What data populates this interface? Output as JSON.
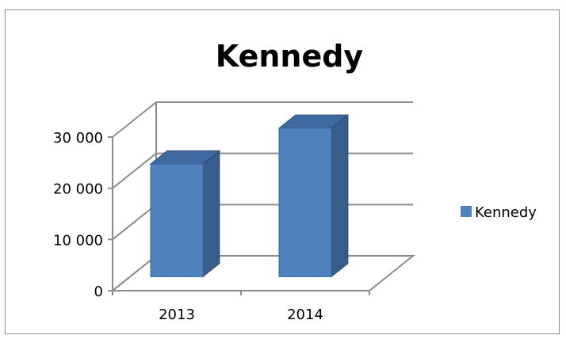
{
  "chart_data": {
    "type": "bar",
    "title": "Kennedy",
    "categories": [
      "2013",
      "2014"
    ],
    "series": [
      {
        "name": "Kennedy",
        "values": [
          22000,
          29000
        ],
        "color": "#4f81bd"
      }
    ],
    "xlabel": "",
    "ylabel": "",
    "ylim": [
      0,
      30000
    ],
    "yticks": [
      0,
      10000,
      20000,
      30000
    ],
    "ytick_labels": [
      "0",
      "10 000",
      "20 000",
      "30 000"
    ],
    "grid": true,
    "legend_position": "right",
    "style": "3d-column"
  }
}
